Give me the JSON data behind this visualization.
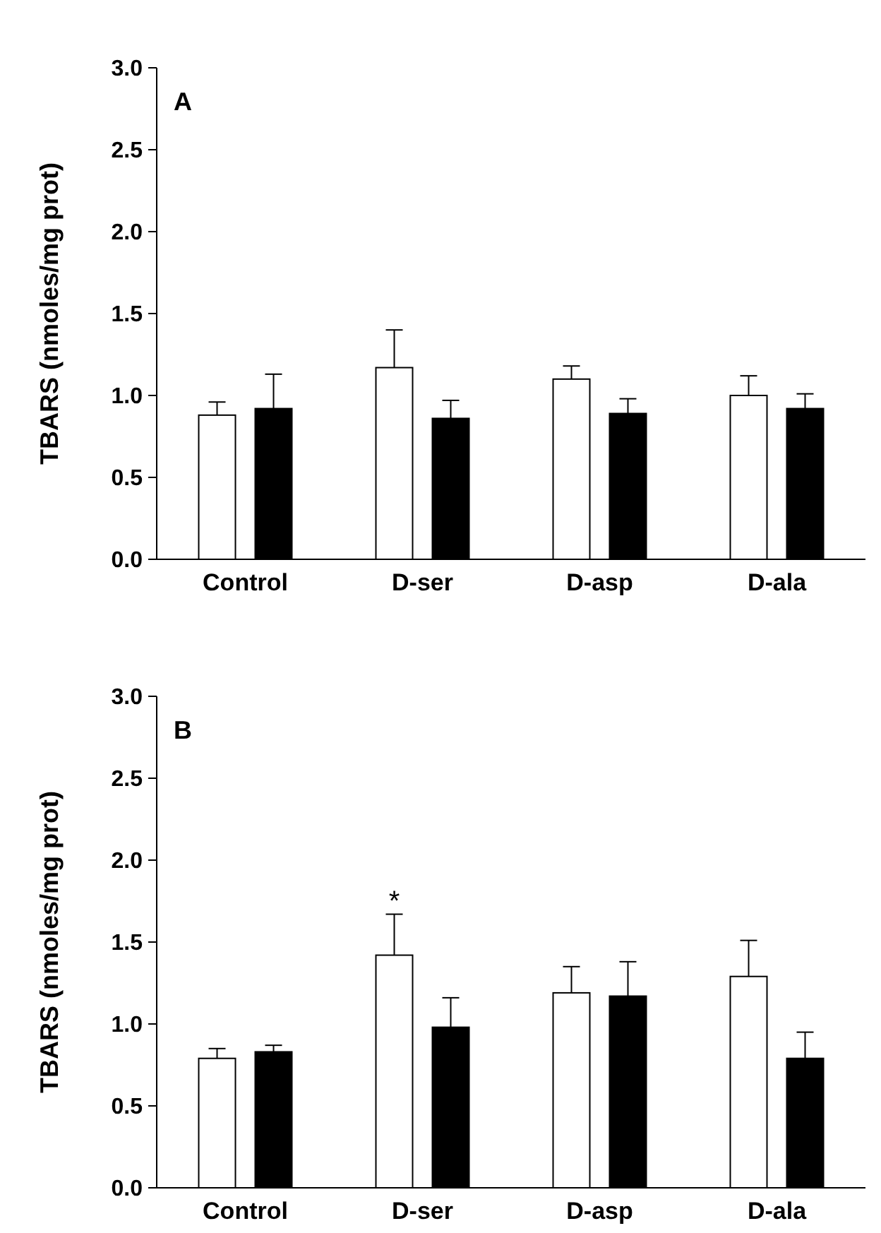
{
  "chart_data": [
    {
      "type": "bar",
      "title": "A",
      "ylabel": "TBARS (nmoles/mg prot)",
      "categories": [
        "Control",
        "D-ser",
        "D-asp",
        "D-ala"
      ],
      "ylim": [
        0,
        3
      ],
      "yticks": [
        {
          "value": 0,
          "label": "0.0"
        },
        {
          "value": 0.5,
          "label": "0.5"
        },
        {
          "value": 1,
          "label": "1.0"
        },
        {
          "value": 1.5,
          "label": "1.5"
        },
        {
          "value": 2,
          "label": "2.0"
        },
        {
          "value": 2.5,
          "label": "2.5"
        },
        {
          "value": 3,
          "label": "3.0"
        }
      ],
      "grid": false,
      "series": [
        {
          "color": "#ffffff",
          "values": [
            0.88,
            1.17,
            1.1,
            1.0
          ],
          "errors": [
            0.08,
            0.23,
            0.08,
            0.12
          ]
        },
        {
          "color": "#000000",
          "values": [
            0.92,
            0.86,
            0.89,
            0.92
          ],
          "errors": [
            0.21,
            0.11,
            0.09,
            0.09
          ]
        }
      ]
    },
    {
      "type": "bar",
      "title": "B",
      "ylabel": "TBARS (nmoles/mg prot)",
      "categories": [
        "Control",
        "D-ser",
        "D-asp",
        "D-ala"
      ],
      "ylim": [
        0,
        3
      ],
      "yticks": [
        {
          "value": 0,
          "label": "0.0"
        },
        {
          "value": 0.5,
          "label": "0.5"
        },
        {
          "value": 1,
          "label": "1.0"
        },
        {
          "value": 1.5,
          "label": "1.5"
        },
        {
          "value": 2,
          "label": "2.0"
        },
        {
          "value": 2.5,
          "label": "2.5"
        },
        {
          "value": 3,
          "label": "3.0"
        }
      ],
      "grid": false,
      "annotations": [
        "*"
      ],
      "series": [
        {
          "color": "#ffffff",
          "values": [
            0.79,
            1.42,
            1.19,
            1.29
          ],
          "errors": [
            0.06,
            0.25,
            0.16,
            0.22
          ]
        },
        {
          "color": "#000000",
          "values": [
            0.83,
            0.98,
            1.17,
            0.79
          ],
          "errors": [
            0.04,
            0.18,
            0.21,
            0.16
          ]
        }
      ]
    }
  ]
}
